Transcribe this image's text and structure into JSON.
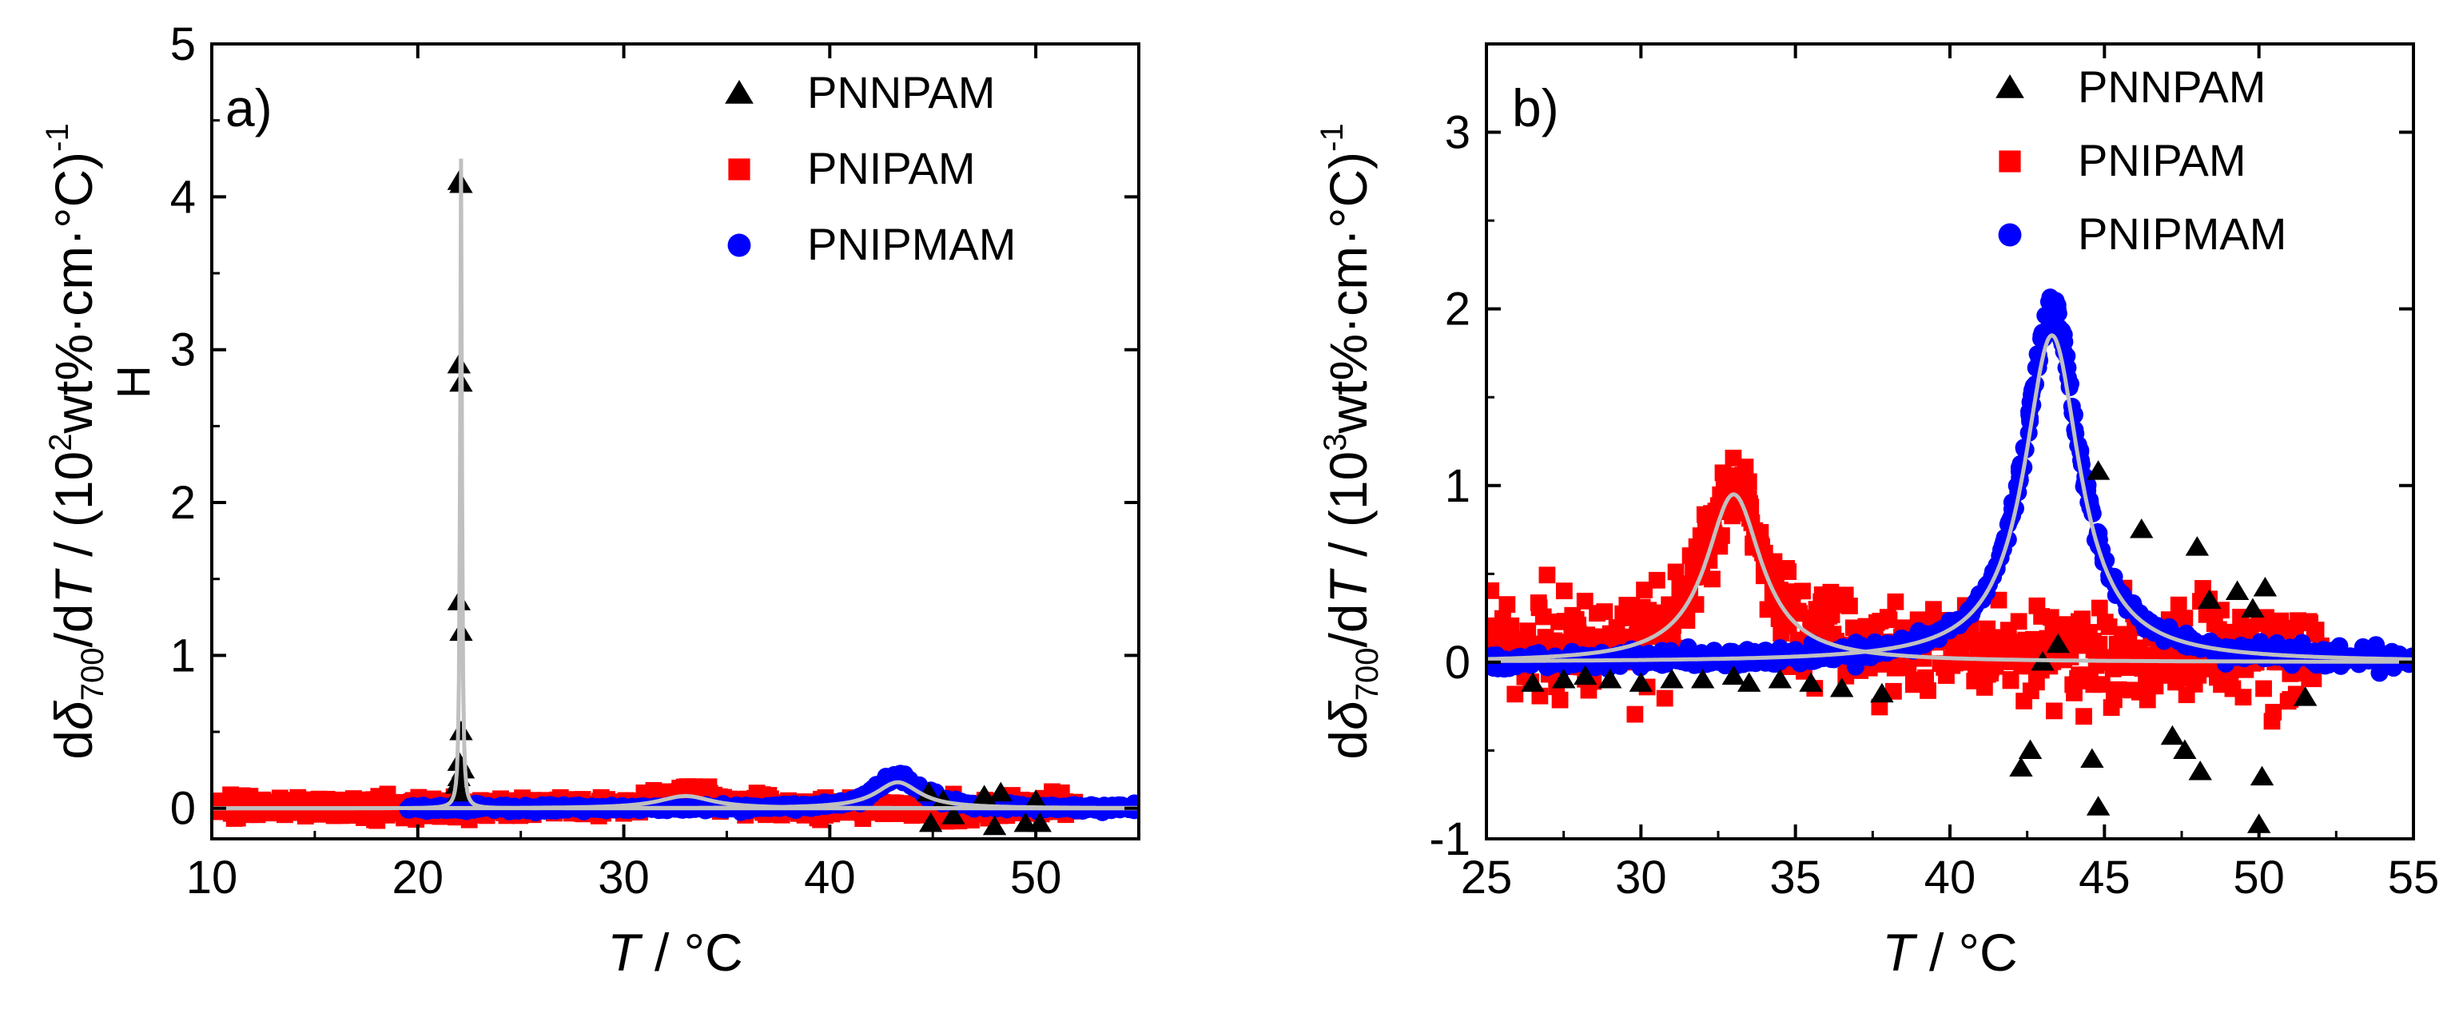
{
  "chart_data": [
    {
      "id": "a",
      "type": "scatter",
      "panel_label": "a)",
      "xlabel_var": "T",
      "xlabel_rest": " / °C",
      "ylabel": {
        "pre": "d",
        "delta": "δ",
        "sub": "700",
        "slash": "/d",
        "T": "T",
        "mid": " / (10",
        "sup": "2",
        "post": "wt%·cm·°C)",
        "exp": "-1",
        "hsub": "H"
      },
      "xlim": [
        10,
        55
      ],
      "ylim": [
        -0.2,
        5
      ],
      "xticks": [
        10,
        20,
        30,
        40,
        50
      ],
      "yticks": [
        0,
        1,
        2,
        3,
        4,
        5
      ],
      "xtick_labels": [
        "10",
        "20",
        "30",
        "40",
        "50"
      ],
      "ytick_labels": [
        "0",
        "1",
        "2",
        "3",
        "4",
        "5"
      ],
      "legend_position": "top-right",
      "series": [
        {
          "name": "PNNPAM",
          "marker": "triangle",
          "color": "#000000",
          "points": [
            [
              22,
              0.1
            ],
            [
              22,
              0.2
            ],
            [
              22,
              0.3
            ],
            [
              22.1,
              0.5
            ],
            [
              22.1,
              1.15
            ],
            [
              22,
              1.35
            ],
            [
              22.1,
              2.78
            ],
            [
              22,
              2.9
            ],
            [
              22.1,
              4.08
            ],
            [
              22,
              4.1
            ],
            [
              22.2,
              0.25
            ],
            [
              21.9,
              0.15
            ],
            [
              44.8,
              0.1
            ],
            [
              44.9,
              -0.1
            ],
            [
              45.5,
              0.05
            ],
            [
              46,
              -0.05
            ],
            [
              47.5,
              0.08
            ],
            [
              48,
              -0.12
            ],
            [
              48.3,
              0.1
            ],
            [
              49.5,
              -0.1
            ],
            [
              50,
              0.05
            ],
            [
              50.2,
              -0.1
            ]
          ]
        },
        {
          "name": "PNIPAM",
          "marker": "square",
          "color": "#ff0000",
          "band": {
            "x0": 10,
            "x1": 52,
            "base": 0.0,
            "spread": 0.12,
            "peak_x": 33,
            "peak_h": 0.1,
            "peak_w": 1.6
          }
        },
        {
          "name": "PNIPMAM",
          "marker": "circle",
          "color": "#0000ff",
          "band": {
            "x0": 19.5,
            "x1": 55,
            "base": 0.0,
            "spread": 0.04,
            "peak_x": 43.3,
            "peak_h": 0.2,
            "peak_w": 1.3
          }
        }
      ],
      "fits": [
        {
          "name": "PNNPAM fit",
          "color": "#c0c0c0",
          "x0": 10,
          "x1": 55,
          "center": 22.1,
          "height": 4.25,
          "width": 0.05
        },
        {
          "name": "PNIPAM fit",
          "color": "#c0c0c0",
          "x0": 10,
          "x1": 55,
          "center": 33,
          "height": 0.08,
          "width": 1.6
        },
        {
          "name": "PNIPMAM fit",
          "color": "#c0c0c0",
          "x0": 19.5,
          "x1": 55,
          "center": 43.3,
          "height": 0.17,
          "width": 1.3
        }
      ]
    },
    {
      "id": "b",
      "type": "scatter",
      "panel_label": "b)",
      "xlabel_var": "T",
      "xlabel_rest": " / °C",
      "ylabel": {
        "pre": "d",
        "delta": "δ",
        "sub": "700",
        "slash": "/d",
        "T": "T",
        "mid": " / (10",
        "sup": "3",
        "post": "wt%·cm·°C)",
        "exp": "-1",
        "hsub": ""
      },
      "xlim": [
        25,
        55
      ],
      "ylim": [
        -1,
        3.5
      ],
      "xticks": [
        25,
        30,
        35,
        40,
        45,
        50,
        55
      ],
      "yticks": [
        -1,
        0,
        1,
        2,
        3
      ],
      "xtick_labels": [
        "25",
        "30",
        "35",
        "40",
        "45",
        "50",
        "55"
      ],
      "ytick_labels": [
        "-1",
        "0",
        "1",
        "2",
        "3"
      ],
      "legend_position": "top-right",
      "series": [
        {
          "name": "PNNPAM",
          "marker": "triangle",
          "color": "#000000",
          "points": [
            [
              26.5,
              -0.12
            ],
            [
              27.5,
              -0.1
            ],
            [
              28.2,
              -0.08
            ],
            [
              29,
              -0.1
            ],
            [
              30,
              -0.12
            ],
            [
              31,
              -0.1
            ],
            [
              32,
              -0.1
            ],
            [
              33,
              -0.08
            ],
            [
              33.5,
              -0.12
            ],
            [
              34.5,
              -0.1
            ],
            [
              35.5,
              -0.12
            ],
            [
              36.5,
              -0.15
            ],
            [
              37.8,
              -0.18
            ],
            [
              42.3,
              -0.6
            ],
            [
              42.6,
              -0.5
            ],
            [
              43,
              0.0
            ],
            [
              43.5,
              0.1
            ],
            [
              44.8,
              1.08
            ],
            [
              44.8,
              -0.82
            ],
            [
              44.6,
              -0.55
            ],
            [
              46.2,
              0.75
            ],
            [
              47.2,
              -0.42
            ],
            [
              47.6,
              -0.5
            ],
            [
              48,
              0.65
            ],
            [
              48.1,
              -0.62
            ],
            [
              48.4,
              0.35
            ],
            [
              49.3,
              0.4
            ],
            [
              49.8,
              0.3
            ],
            [
              50,
              -0.92
            ],
            [
              50.1,
              -0.65
            ],
            [
              50.2,
              0.42
            ],
            [
              51.5,
              -0.2
            ]
          ]
        },
        {
          "name": "PNIPAM",
          "marker": "square",
          "color": "#ff0000",
          "band": {
            "x0": 25,
            "x1": 52,
            "base": 0.05,
            "spread": 0.55,
            "peak_x": 33,
            "peak_h": 0.95,
            "peak_w": 1.1
          }
        },
        {
          "name": "PNIPMAM",
          "marker": "circle",
          "color": "#0000ff",
          "band": {
            "x0": 25,
            "x1": 55,
            "base": 0.0,
            "spread": 0.1,
            "peak_x": 43.3,
            "peak_h": 1.95,
            "peak_w": 1.1
          }
        }
      ],
      "fits": [
        {
          "name": "PNIPAM fit",
          "color": "#c0c0c0",
          "x0": 25,
          "x1": 55,
          "center": 33,
          "height": 0.95,
          "width": 1.1
        },
        {
          "name": "PNIPMAM fit",
          "color": "#c0c0c0",
          "x0": 25,
          "x1": 55,
          "center": 43.3,
          "height": 1.85,
          "width": 1.1
        }
      ]
    }
  ]
}
